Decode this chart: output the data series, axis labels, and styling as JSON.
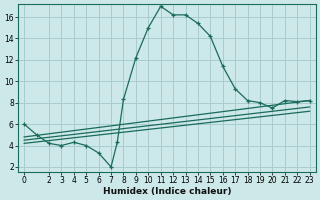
{
  "title": "",
  "xlabel": "Humidex (Indice chaleur)",
  "bg_color": "#cce8e8",
  "grid_color": "#aacccc",
  "line_color": "#1a6b5a",
  "xlim": [
    -0.5,
    23.5
  ],
  "ylim": [
    1.5,
    17.2
  ],
  "yticks": [
    2,
    4,
    6,
    8,
    10,
    12,
    14,
    16
  ],
  "xticks": [
    0,
    2,
    3,
    4,
    5,
    6,
    7,
    8,
    9,
    10,
    11,
    12,
    13,
    14,
    15,
    16,
    17,
    18,
    19,
    20,
    21,
    22,
    23
  ],
  "main_x": [
    0,
    1,
    2,
    3,
    4,
    5,
    6,
    7,
    7.5,
    8,
    9,
    10,
    11,
    12,
    13,
    14,
    15,
    16,
    17,
    18,
    19,
    20,
    21,
    22,
    23
  ],
  "main_y": [
    6,
    5.0,
    4.2,
    4.0,
    4.3,
    4.0,
    3.3,
    2.0,
    4.3,
    8.3,
    12.2,
    15.0,
    17.0,
    16.2,
    16.2,
    15.4,
    14.2,
    11.4,
    9.3,
    8.2,
    8.0,
    7.5,
    8.2,
    8.1,
    8.2
  ],
  "trend1_x": [
    0,
    23
  ],
  "trend1_y": [
    4.8,
    8.2
  ],
  "trend2_x": [
    0,
    23
  ],
  "trend2_y": [
    4.5,
    7.6
  ],
  "trend3_x": [
    0,
    23
  ],
  "trend3_y": [
    4.2,
    7.2
  ]
}
